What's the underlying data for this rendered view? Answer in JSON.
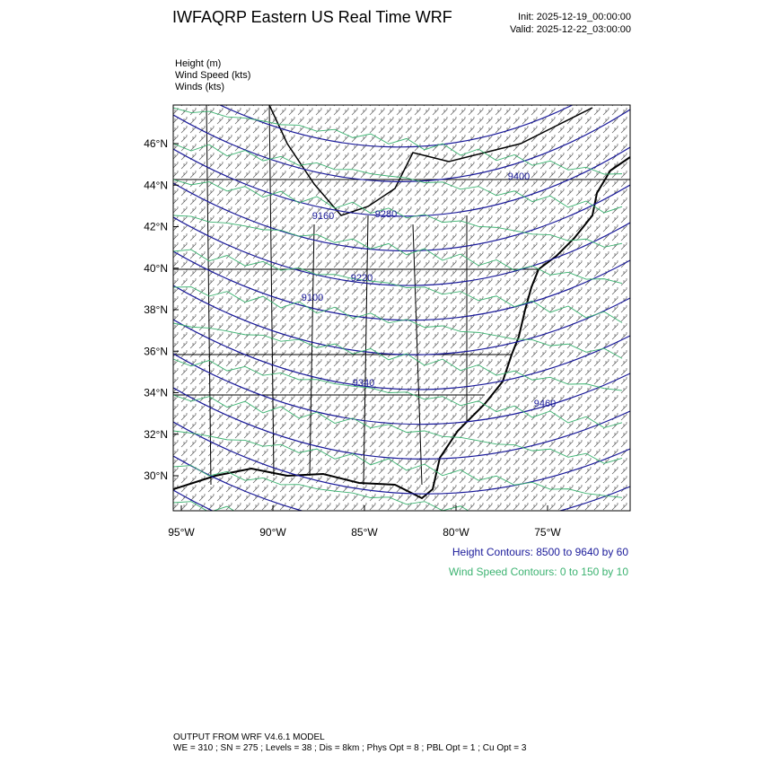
{
  "header": {
    "title": "IWFAQRP Eastern US Real Time WRF",
    "init": "Init: 2025-12-19_00:00:00",
    "valid": "Valid: 2025-12-22_03:00:00"
  },
  "fields": [
    "Height   (m)",
    "Wind Speed   (kts)",
    "Winds   (kts)"
  ],
  "map": {
    "lat_ticks": [
      "46°N",
      "44°N",
      "42°N",
      "40°N",
      "38°N",
      "36°N",
      "34°N",
      "32°N",
      "30°N"
    ],
    "lon_ticks": [
      "95°W",
      "90°W",
      "85°W",
      "80°W",
      "75°W"
    ],
    "contour_labels": [
      "9100",
      "9160",
      "9220",
      "9280",
      "9340",
      "9400",
      "9460"
    ]
  },
  "legend": {
    "height": "Height Contours: 8500 to 9640 by 60",
    "wind": "Wind Speed Contours: 0 to 150 by 10"
  },
  "footer": {
    "line1": "OUTPUT FROM WRF V4.6.1 MODEL",
    "line2": "WE = 310 ; SN = 275 ; Levels = 38 ; Dis = 8km ; Phys Opt = 8 ; PBL Opt = 1 ; Cu Opt = 3"
  }
}
